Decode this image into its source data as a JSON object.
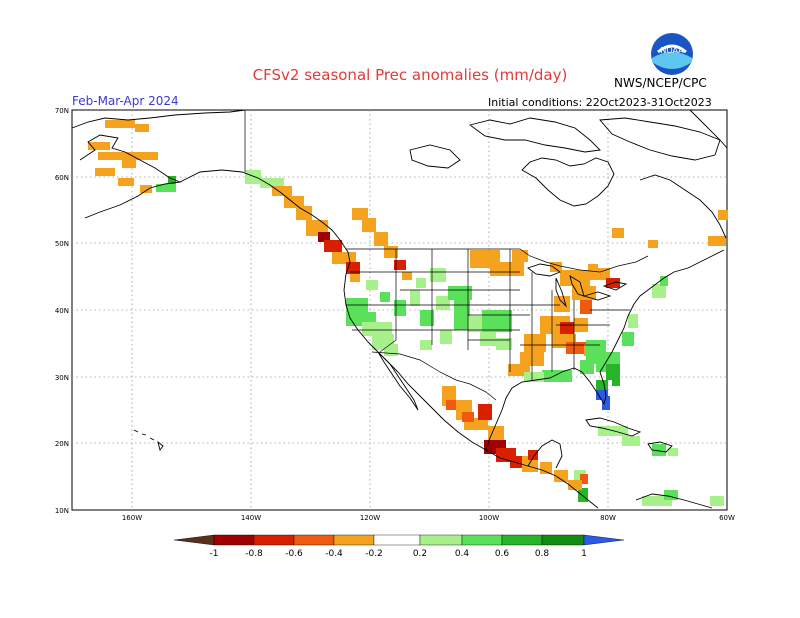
{
  "title": "CFSv2 seasonal Prec anomalies (mm/day)",
  "season": "Feb-Mar-Apr 2024",
  "initial_conditions": "Initial conditions: 22Oct2023-31Oct2023",
  "agency": "NWS/NCEP/CPC",
  "logo_text": "NOAA",
  "lat_labels": [
    "70N",
    "60N",
    "50N",
    "40N",
    "30N",
    "20N",
    "10N"
  ],
  "lon_labels": [
    "160W",
    "140W",
    "120W",
    "100W",
    "80W",
    "60W"
  ],
  "colorbar": {
    "labels": [
      "-1",
      "-0.8",
      "-0.6",
      "-0.4",
      "-0.2",
      "0.2",
      "0.4",
      "0.6",
      "0.8",
      "1"
    ],
    "colors": [
      "#5a2f1c",
      "#a00000",
      "#d82000",
      "#f05a10",
      "#f5a31e",
      "#ffffff",
      "#a8f08c",
      "#5ae05a",
      "#28b428",
      "#108c10",
      "#2a5ae6"
    ]
  },
  "colors": {
    "title": "#e33a3a",
    "season": "#3a3ad4",
    "grid": "#9a9a9a",
    "coast": "#000000"
  }
}
